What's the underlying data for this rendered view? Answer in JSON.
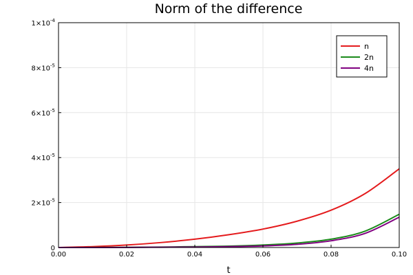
{
  "chart_data": {
    "type": "line",
    "title": "Norm of the difference",
    "xlabel": "t",
    "ylabel": "",
    "xlim": [
      0,
      0.1
    ],
    "ylim": [
      0,
      0.0001
    ],
    "x_ticks": [
      {
        "value": 0.0,
        "label": "0.00"
      },
      {
        "value": 0.02,
        "label": "0.02"
      },
      {
        "value": 0.04,
        "label": "0.04"
      },
      {
        "value": 0.06,
        "label": "0.06"
      },
      {
        "value": 0.08,
        "label": "0.08"
      },
      {
        "value": 0.1,
        "label": "0.10"
      }
    ],
    "y_ticks": [
      {
        "value": 0,
        "label": "0"
      },
      {
        "value": 2e-05,
        "mantissa": "2",
        "times": "×10",
        "exponent": "-5"
      },
      {
        "value": 4e-05,
        "mantissa": "4",
        "times": "×10",
        "exponent": "-5"
      },
      {
        "value": 6e-05,
        "mantissa": "6",
        "times": "×10",
        "exponent": "-5"
      },
      {
        "value": 8e-05,
        "mantissa": "8",
        "times": "×10",
        "exponent": "-5"
      },
      {
        "value": 0.0001,
        "mantissa": "1",
        "times": "×10",
        "exponent": "-4"
      }
    ],
    "grid": true,
    "legend_position": "top-right",
    "x": [
      0,
      0.01,
      0.02,
      0.03,
      0.04,
      0.05,
      0.06,
      0.07,
      0.08,
      0.09,
      0.1
    ],
    "series": [
      {
        "name": "n",
        "color": "#e41a1c",
        "values": [
          0,
          4e-07,
          1.1e-06,
          2.2e-06,
          3.7e-06,
          5.7e-06,
          8.2e-06,
          1.17e-05,
          1.66e-05,
          2.4e-05,
          3.5e-05
        ]
      },
      {
        "name": "2n",
        "color": "#1a8a1a",
        "values": [
          0,
          2e-08,
          8e-08,
          2e-07,
          4e-07,
          6e-07,
          1.1e-06,
          2e-06,
          3.7e-06,
          7.3e-06,
          1.48e-05
        ]
      },
      {
        "name": "4n",
        "color": "#800080",
        "values": [
          0,
          1e-08,
          5e-08,
          1.2e-07,
          2e-07,
          4e-07,
          7e-07,
          1.4e-06,
          3e-06,
          6.3e-06,
          1.35e-05
        ]
      }
    ]
  }
}
